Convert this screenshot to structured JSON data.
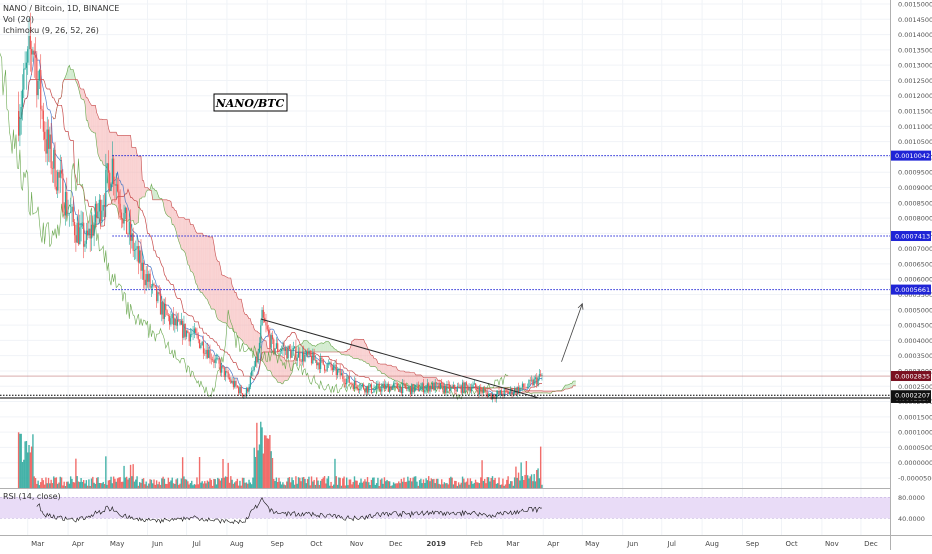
{
  "header": {
    "title": "NANO / Bitcoin, 1D, BINANCE",
    "vol_indicator": "Vol (20)",
    "ichimoku_indicator": "Ichimoku (9, 26, 52, 26)",
    "rsi_indicator": "RSI (14, close)"
  },
  "annotation": {
    "label": "NANO/BTC"
  },
  "colors": {
    "bull_candle": "#26a69a",
    "bear_candle": "#ef5350",
    "conversion_line": "#4a78c7",
    "base_line": "#c64a4a",
    "lagging_span": "#6aa84f",
    "cloud_bear": "#f5b3b3",
    "cloud_bull": "#b6dfb0",
    "resistance_line": "#1f24d6",
    "support_line": "#000000",
    "trendline": "#2b2b2b",
    "rsi_line": "#111111",
    "rsi_band": "#e9dcf7"
  },
  "price_axis": {
    "ticks": [
      "0.0015000",
      "0.0014500",
      "0.0014000",
      "0.0013500",
      "0.0013000",
      "0.0012500",
      "0.0012000",
      "0.0011500",
      "0.0011000",
      "0.0010500",
      "0.0010000",
      "0.0009500",
      "0.0009000",
      "0.0008500",
      "0.0008000",
      "0.0007500",
      "0.0007000",
      "0.0006500",
      "0.0006000",
      "0.0005500",
      "0.0005000",
      "0.0004500",
      "0.0004000",
      "0.0003500",
      "0.0003000",
      "0.0002500",
      "0.0002000",
      "0.0001500",
      "0.0001000",
      "0.0000500",
      "0.0000000",
      "-0.0000500"
    ],
    "badges": [
      {
        "text": "0.0010042",
        "kind": "resistance"
      },
      {
        "text": "0.0007413",
        "kind": "resistance"
      },
      {
        "text": "0.0005661",
        "kind": "resistance"
      },
      {
        "text": "0.0002835",
        "kind": "price"
      },
      {
        "text": "0.0002117",
        "kind": "support"
      },
      {
        "text": "0.0002207",
        "kind": "support"
      }
    ]
  },
  "rsi_axis": {
    "ticks": [
      "80.0000",
      "40.0000"
    ]
  },
  "time_axis": {
    "labels": [
      "Mar",
      "Apr",
      "May",
      "Jun",
      "Jul",
      "Aug",
      "Sep",
      "Oct",
      "Nov",
      "Dec",
      "2019",
      "Feb",
      "Mar",
      "Apr",
      "May",
      "Jun",
      "Jul",
      "Aug",
      "Sep",
      "Oct",
      "Nov",
      "Dec"
    ]
  },
  "chart_data": {
    "type": "candlestick",
    "pair": "NANO/BTC",
    "interval": "1D",
    "exchange": "BINANCE",
    "ylim": [
      -5e-05,
      0.0015
    ],
    "x_range": [
      "2018-02-20",
      "2019-12-31"
    ],
    "horizontal_levels": [
      {
        "value": 0.0010042,
        "style": "dotted",
        "color": "blue"
      },
      {
        "value": 0.0007413,
        "style": "dotted",
        "color": "blue"
      },
      {
        "value": 0.0005661,
        "style": "dotted",
        "color": "blue"
      },
      {
        "value": 0.0002207,
        "style": "dotted",
        "color": "black"
      },
      {
        "value": 0.0002117,
        "style": "solid",
        "color": "black"
      }
    ],
    "current_price": 0.0002835,
    "trendline": {
      "from": {
        "date": "2018-08-27",
        "value": 0.00047
      },
      "to": {
        "date": "2019-03-30",
        "value": 0.00021
      }
    },
    "projection_arrow": {
      "from": {
        "date": "2019-04-15",
        "value": 0.00033
      },
      "to": {
        "date": "2019-05-01",
        "value": 0.00052
      }
    },
    "close_series": [
      {
        "date": "2018-02-22",
        "close": 0.00115
      },
      {
        "date": "2018-03-05",
        "close": 0.00138
      },
      {
        "date": "2018-03-15",
        "close": 0.00105
      },
      {
        "date": "2018-03-25",
        "close": 0.00092
      },
      {
        "date": "2018-04-05",
        "close": 0.00078
      },
      {
        "date": "2018-04-15",
        "close": 0.00072
      },
      {
        "date": "2018-04-25",
        "close": 0.00083
      },
      {
        "date": "2018-05-05",
        "close": 0.00098
      },
      {
        "date": "2018-05-15",
        "close": 0.00078
      },
      {
        "date": "2018-05-25",
        "close": 0.00066
      },
      {
        "date": "2018-06-05",
        "close": 0.00056
      },
      {
        "date": "2018-06-15",
        "close": 0.00048
      },
      {
        "date": "2018-06-25",
        "close": 0.00044
      },
      {
        "date": "2018-07-05",
        "close": 0.00042
      },
      {
        "date": "2018-07-15",
        "close": 0.00038
      },
      {
        "date": "2018-07-25",
        "close": 0.00032
      },
      {
        "date": "2018-08-05",
        "close": 0.00026
      },
      {
        "date": "2018-08-15",
        "close": 0.00022
      },
      {
        "date": "2018-08-25",
        "close": 0.00035
      },
      {
        "date": "2018-08-28",
        "close": 0.00047
      },
      {
        "date": "2018-09-05",
        "close": 0.00038
      },
      {
        "date": "2018-09-20",
        "close": 0.00036
      },
      {
        "date": "2018-10-05",
        "close": 0.00034
      },
      {
        "date": "2018-10-20",
        "close": 0.00031
      },
      {
        "date": "2018-11-05",
        "close": 0.00026
      },
      {
        "date": "2018-11-20",
        "close": 0.00024
      },
      {
        "date": "2018-12-05",
        "close": 0.00025
      },
      {
        "date": "2018-12-20",
        "close": 0.00024
      },
      {
        "date": "2019-01-05",
        "close": 0.00025
      },
      {
        "date": "2019-01-20",
        "close": 0.00024
      },
      {
        "date": "2019-02-05",
        "close": 0.00025
      },
      {
        "date": "2019-02-20",
        "close": 0.00022
      },
      {
        "date": "2019-03-05",
        "close": 0.00023
      },
      {
        "date": "2019-03-20",
        "close": 0.00025
      },
      {
        "date": "2019-03-31",
        "close": 0.0002835
      }
    ]
  }
}
